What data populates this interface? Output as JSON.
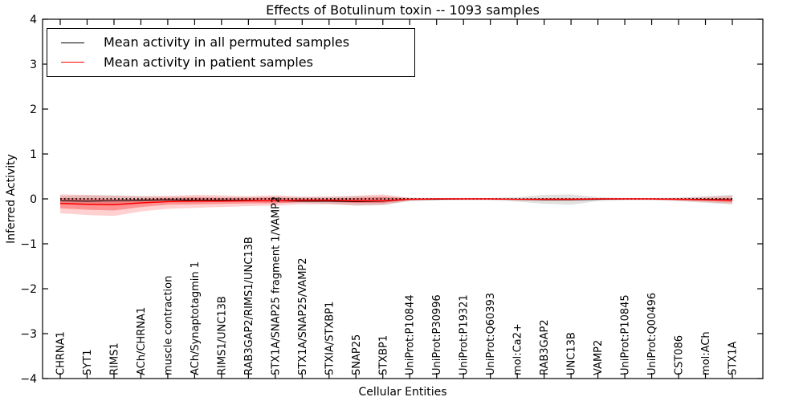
{
  "title": "Effects of Botulinum toxin -- 1093 samples",
  "legend": {
    "items": [
      {
        "label": "Mean activity in all permuted samples",
        "color": "#000000"
      },
      {
        "label": "Mean activity in patient samples",
        "color": "#ff0000"
      }
    ]
  },
  "chart_data": {
    "type": "line",
    "title": "Effects of Botulinum toxin -- 1093 samples",
    "xlabel": "Cellular Entities",
    "ylabel": "Inferred Activity",
    "ylim": [
      -4,
      4
    ],
    "yticks": [
      -4,
      -3,
      -2,
      -1,
      0,
      1,
      2,
      3,
      4
    ],
    "grid": false,
    "legend_position": "upper left",
    "x_tick_rotation": 90,
    "categories": [
      "CHRNA1",
      "SYT1",
      "RIMS1",
      "ACh/CHRNA1",
      "muscle contraction",
      "ACh/Synaptotagmin 1",
      "RIMS1/UNC13B",
      "RAB3GAP2/RIMS1/UNC13B",
      "STX1A/SNAP25 fragment 1/VAMP2",
      "STX1A/SNAP25/VAMP2",
      "STXIA/STXBP1",
      "SNAP25",
      "STXBP1",
      "UniProt:P10844",
      "UniProt:P30996",
      "UniProt:P19321",
      "UniProt:Q60393",
      "mol:Ca2+",
      "RAB3GAP2",
      "UNC13B",
      "VAMP2",
      "UniProt:P10845",
      "UniProt:Q00496",
      "CST086",
      "mol:ACh",
      "STX1A"
    ],
    "series": [
      {
        "name": "Mean activity in all permuted samples",
        "color": "#000000",
        "style": "solid",
        "width": 1.1,
        "values": [
          -0.04,
          -0.05,
          -0.04,
          -0.03,
          -0.02,
          -0.03,
          -0.03,
          -0.03,
          -0.04,
          -0.05,
          -0.05,
          -0.06,
          -0.05,
          -0.01,
          -0.01,
          0.0,
          0.0,
          -0.01,
          -0.02,
          -0.02,
          -0.01,
          0.0,
          0.0,
          -0.01,
          -0.01,
          -0.02
        ]
      },
      {
        "name": "Mean activity in patient samples",
        "color": "#ff0000",
        "style": "solid",
        "width": 1.5,
        "values": [
          -0.1,
          -0.12,
          -0.13,
          -0.09,
          -0.06,
          -0.05,
          -0.05,
          -0.04,
          -0.04,
          -0.03,
          -0.03,
          -0.04,
          -0.04,
          -0.01,
          0.0,
          0.0,
          0.0,
          -0.01,
          -0.01,
          -0.01,
          0.0,
          0.0,
          0.0,
          -0.01,
          -0.02,
          -0.03
        ]
      }
    ],
    "bands": [
      {
        "name": "permuted-samples-range",
        "color": "rgba(120,120,120,0.22)",
        "upper": [
          0.07,
          0.08,
          0.08,
          0.06,
          0.05,
          0.05,
          0.04,
          0.04,
          0.05,
          0.04,
          0.05,
          0.06,
          0.06,
          0.03,
          0.02,
          0.02,
          0.02,
          0.04,
          0.09,
          0.1,
          0.04,
          0.02,
          0.02,
          0.03,
          0.06,
          0.09
        ],
        "lower": [
          -0.11,
          -0.13,
          -0.13,
          -0.1,
          -0.08,
          -0.08,
          -0.07,
          -0.07,
          -0.08,
          -0.09,
          -0.11,
          -0.15,
          -0.14,
          -0.05,
          -0.03,
          -0.03,
          -0.03,
          -0.06,
          -0.11,
          -0.13,
          -0.05,
          -0.03,
          -0.03,
          -0.05,
          -0.09,
          -0.12
        ]
      },
      {
        "name": "patient-samples-range-outer",
        "color": "rgba(255,0,0,0.18)",
        "upper": [
          0.1,
          0.09,
          0.07,
          0.06,
          0.07,
          0.09,
          0.08,
          0.06,
          0.08,
          0.05,
          0.05,
          0.07,
          0.1,
          0.02,
          0.01,
          0.01,
          0.01,
          0.01,
          0.02,
          0.02,
          0.01,
          0.01,
          0.01,
          0.02,
          0.04,
          0.07
        ],
        "lower": [
          -0.32,
          -0.36,
          -0.38,
          -0.28,
          -0.22,
          -0.2,
          -0.18,
          -0.16,
          -0.15,
          -0.12,
          -0.12,
          -0.14,
          -0.13,
          -0.04,
          -0.02,
          -0.02,
          -0.02,
          -0.02,
          -0.04,
          -0.04,
          -0.02,
          -0.02,
          -0.02,
          -0.04,
          -0.07,
          -0.11
        ],
        "legend": null
      },
      {
        "name": "patient-samples-range-inner",
        "color": "rgba(255,0,0,0.30)",
        "upper": [
          0.02,
          0.01,
          0.0,
          0.0,
          0.02,
          0.03,
          0.02,
          0.02,
          0.03,
          0.01,
          0.01,
          0.02,
          0.04,
          0.01,
          0.0,
          0.0,
          0.0,
          0.0,
          0.01,
          0.01,
          0.0,
          0.0,
          0.0,
          0.01,
          0.01,
          0.02
        ],
        "lower": [
          -0.21,
          -0.24,
          -0.26,
          -0.18,
          -0.13,
          -0.12,
          -0.11,
          -0.1,
          -0.1,
          -0.07,
          -0.07,
          -0.09,
          -0.09,
          -0.02,
          -0.01,
          -0.01,
          -0.01,
          -0.01,
          -0.02,
          -0.02,
          -0.01,
          -0.01,
          -0.01,
          -0.02,
          -0.04,
          -0.07
        ]
      }
    ],
    "reference_line": {
      "y": 0,
      "style": "dotted",
      "color": "#000000"
    }
  }
}
